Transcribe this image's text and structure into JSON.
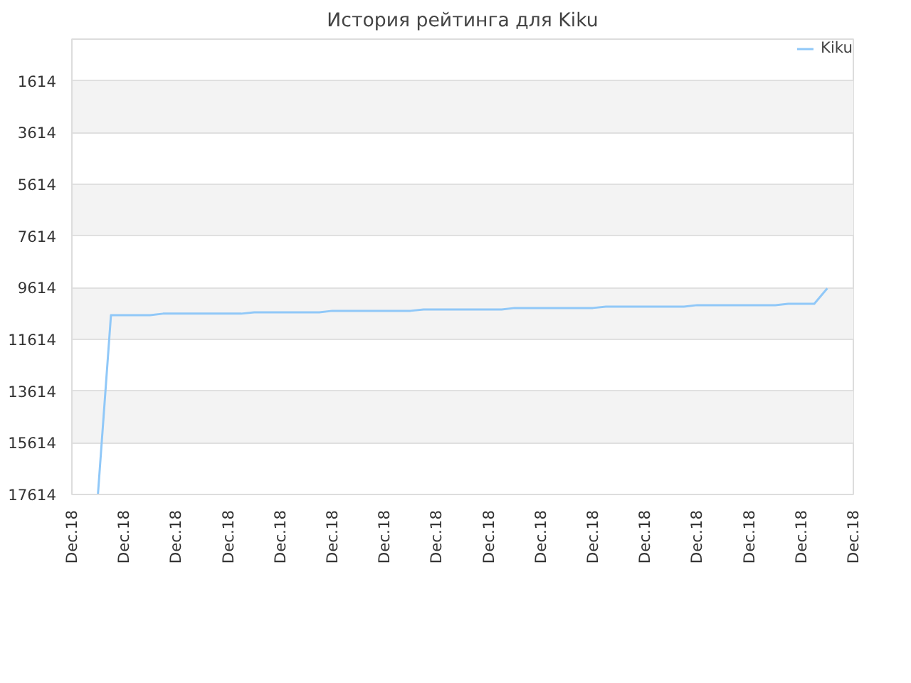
{
  "chart_data": {
    "type": "line",
    "title": "История рейтинга для Kiku",
    "categories": [
      "Dec.18",
      null,
      null,
      null,
      "Dec.18",
      null,
      null,
      null,
      "Dec.18",
      null,
      null,
      null,
      "Dec.18",
      null,
      null,
      null,
      "Dec.18",
      null,
      null,
      null,
      "Dec.18",
      null,
      null,
      null,
      "Dec.18",
      null,
      null,
      null,
      "Dec.18",
      null,
      null,
      null,
      "Dec.18",
      null,
      null,
      null,
      "Dec.18",
      null,
      null,
      null,
      "Dec.18",
      null,
      null,
      null,
      "Dec.18",
      null,
      null,
      null,
      "Dec.18",
      null,
      null,
      null,
      "Dec.18",
      null,
      null,
      null,
      "Dec.18",
      null,
      null,
      null,
      "Dec.18"
    ],
    "series": [
      {
        "name": "Kiku",
        "color": "#90c8f8",
        "values": [
          null,
          null,
          17614,
          10680,
          10680,
          10680,
          10680,
          10620,
          10620,
          10620,
          10620,
          10620,
          10620,
          10620,
          10570,
          10570,
          10570,
          10570,
          10570,
          10570,
          10510,
          10510,
          10510,
          10510,
          10510,
          10510,
          10510,
          10460,
          10460,
          10460,
          10460,
          10460,
          10460,
          10460,
          10400,
          10400,
          10400,
          10400,
          10400,
          10400,
          10400,
          10350,
          10350,
          10350,
          10350,
          10350,
          10350,
          10350,
          10290,
          10290,
          10290,
          10290,
          10290,
          10290,
          10290,
          10240,
          10240,
          10240,
          9640,
          null,
          null
        ]
      }
    ],
    "ylim": [
      17614,
      0
    ],
    "yticks": [
      1614,
      3614,
      5614,
      7614,
      9614,
      11614,
      13614,
      15614,
      17614
    ],
    "grid": "y",
    "legend": "top right",
    "marker": "none",
    "line_style": "solid"
  }
}
